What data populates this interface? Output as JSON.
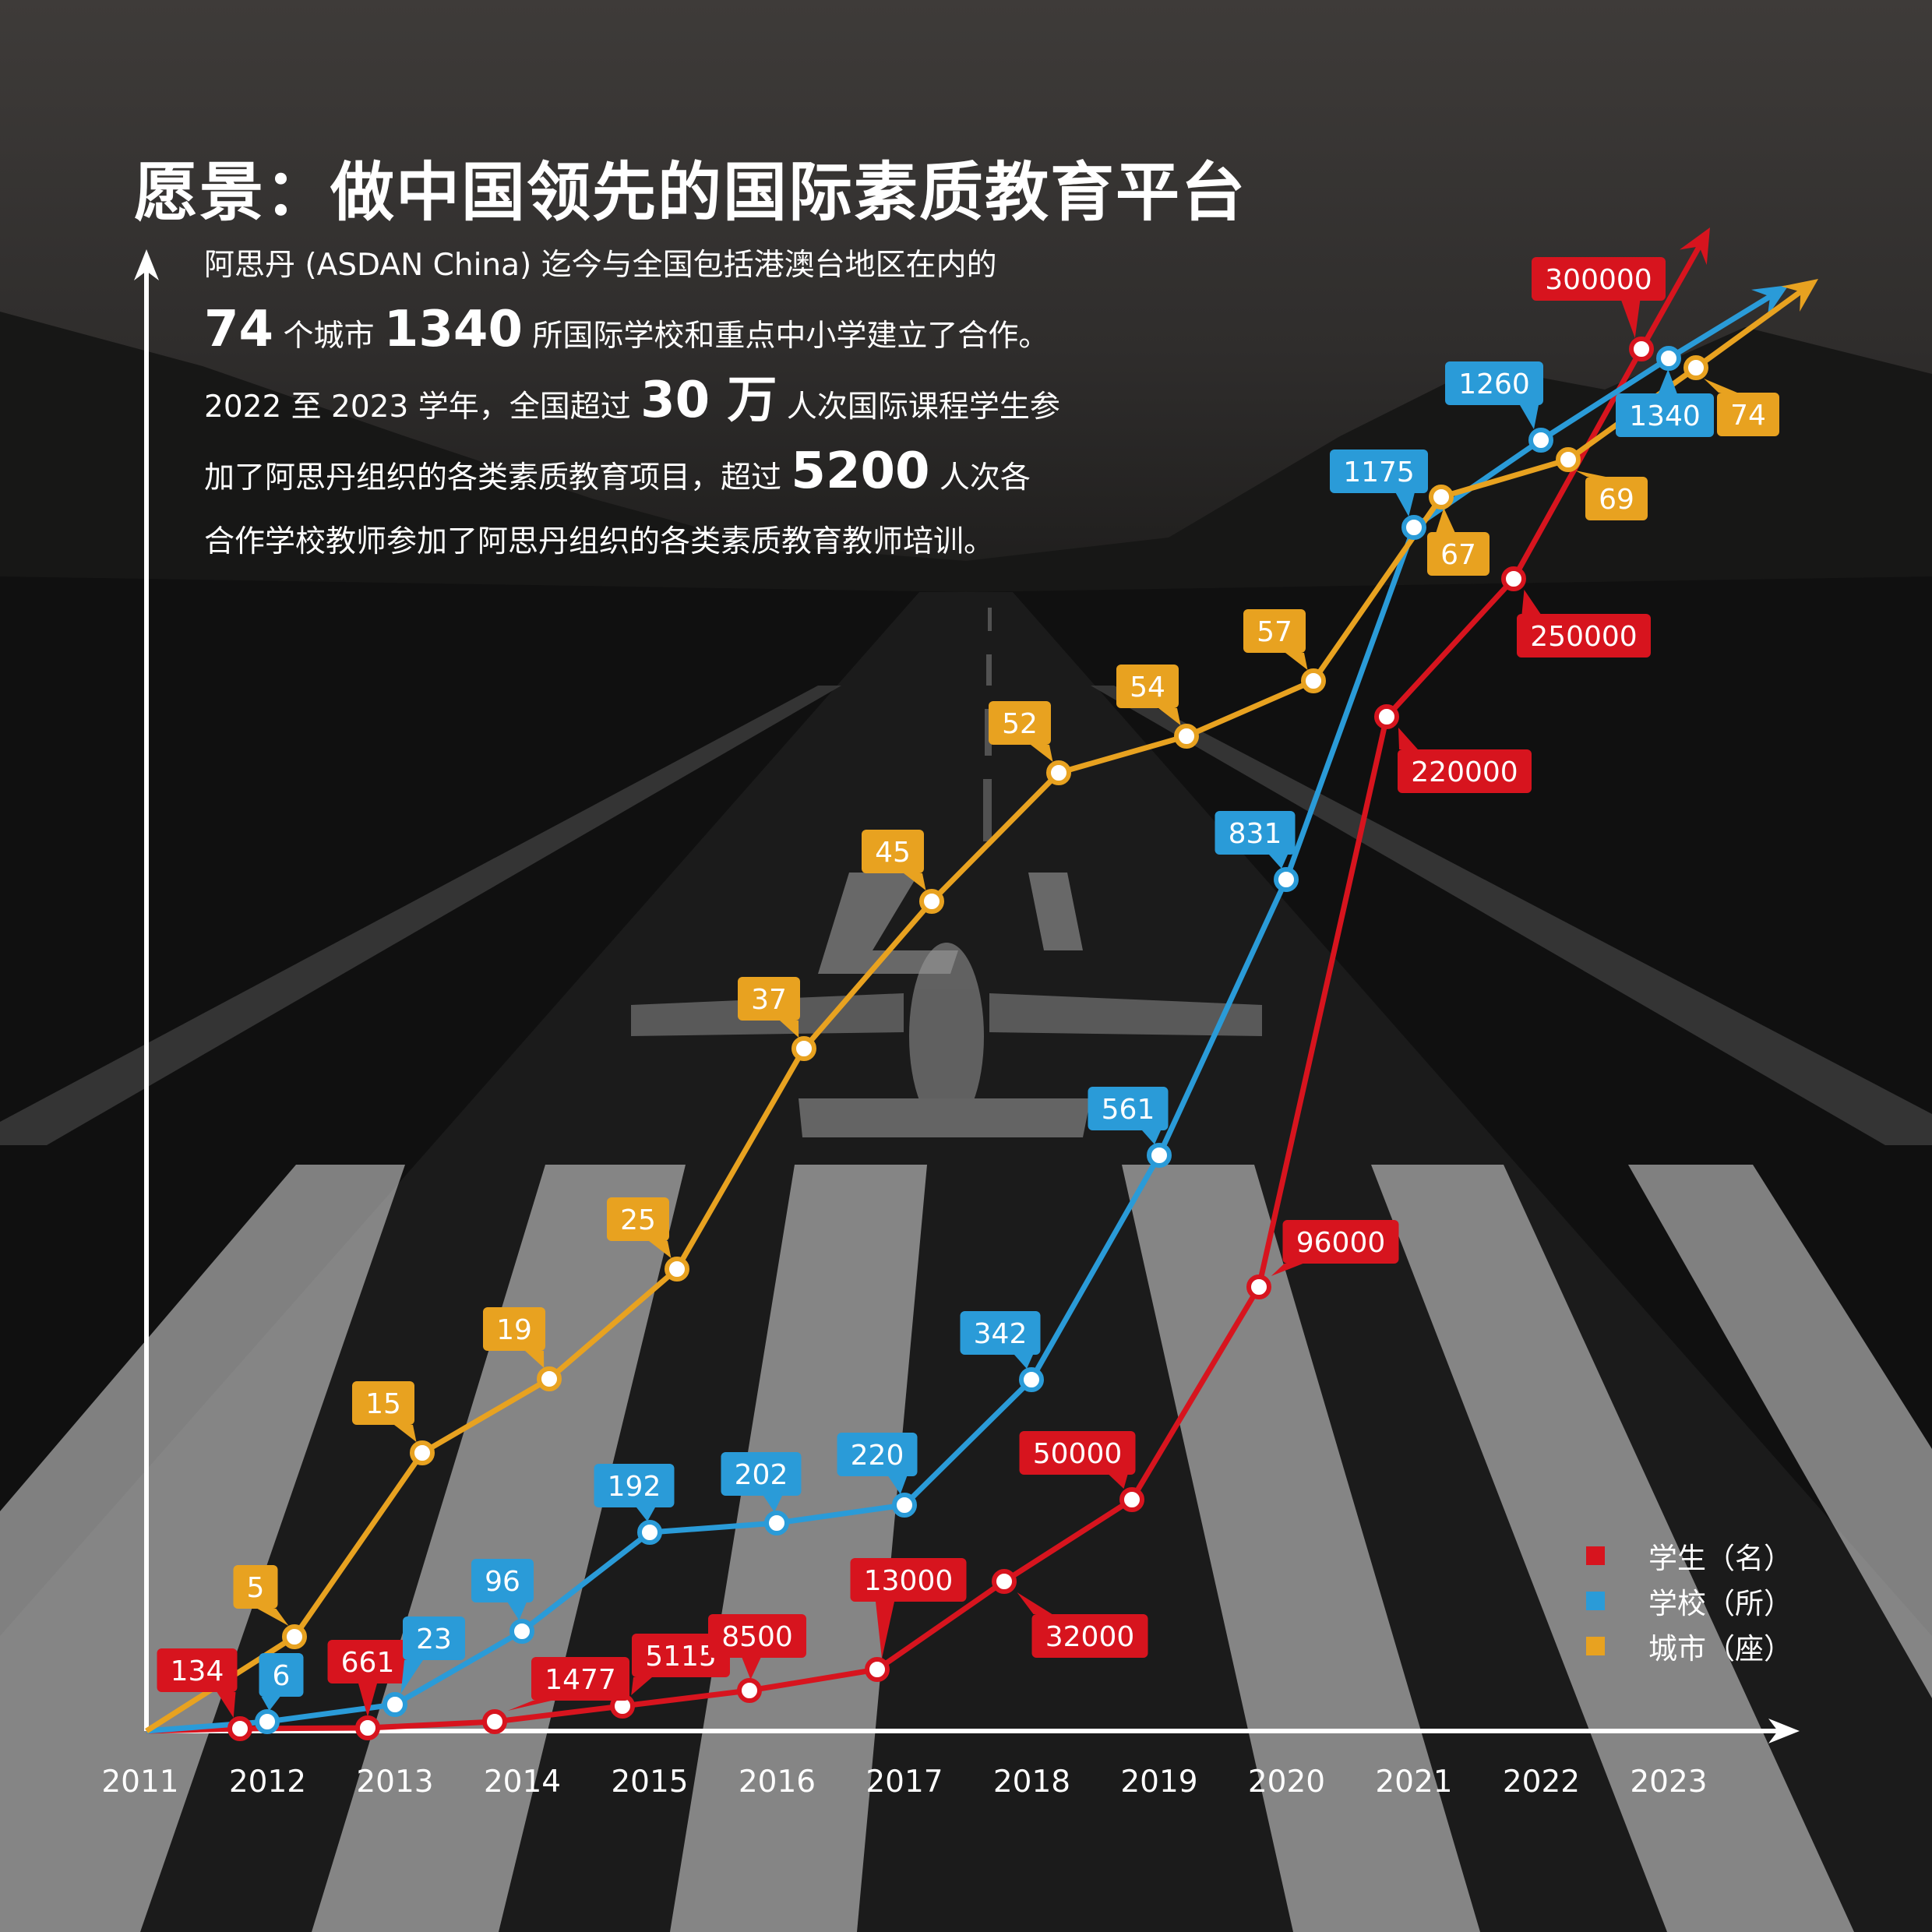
{
  "title": "愿景：做中国领先的国际素质教育平台",
  "intro": {
    "l1": "阿思丹 (ASDAN China) 迄今与全国包括港澳台地区在内的",
    "l2a": "74",
    "l2b": " 个城市 ",
    "l2c": "1340",
    "l2d": " 所国际学校和重点中小学建立了合作。",
    "l3a": "2022 至 2023 学年，全国超过 ",
    "l3b": "30 万",
    "l3c": " 人次国际课程学生参",
    "l4a": "加了阿思丹组织的各类素质教育项目，超过 ",
    "l4b": "5200",
    "l4c": " 人次各",
    "l5": "合作学校教师参加了阿思丹组织的各类素质教育教师培训。"
  },
  "legend": [
    {
      "label": "学生（名）",
      "color": "#d7141e"
    },
    {
      "label": "学校（所）",
      "color": "#2a9bd8"
    },
    {
      "label": "城市（座）",
      "color": "#e8a220"
    }
  ],
  "chart_data": {
    "type": "line",
    "x_axis_labels": [
      "2011",
      "2012",
      "2013",
      "2014",
      "2015",
      "2016",
      "2017",
      "2018",
      "2019",
      "2020",
      "2021",
      "2022",
      "2023"
    ],
    "series": [
      {
        "name": "学生（名）",
        "color": "#d7141e",
        "values": [
          134,
          661,
          1477,
          5115,
          8500,
          13000,
          32000,
          50000,
          96000,
          220000,
          250000,
          300000
        ]
      },
      {
        "name": "学校（所）",
        "color": "#2a9bd8",
        "values": [
          6,
          23,
          96,
          192,
          202,
          220,
          342,
          561,
          831,
          1175,
          1260,
          1340
        ]
      },
      {
        "name": "城市（座）",
        "color": "#e8a220",
        "values": [
          5,
          15,
          19,
          25,
          37,
          45,
          52,
          54,
          57,
          67,
          69,
          74
        ]
      }
    ],
    "grid": false,
    "legend_position": "bottom-right"
  }
}
